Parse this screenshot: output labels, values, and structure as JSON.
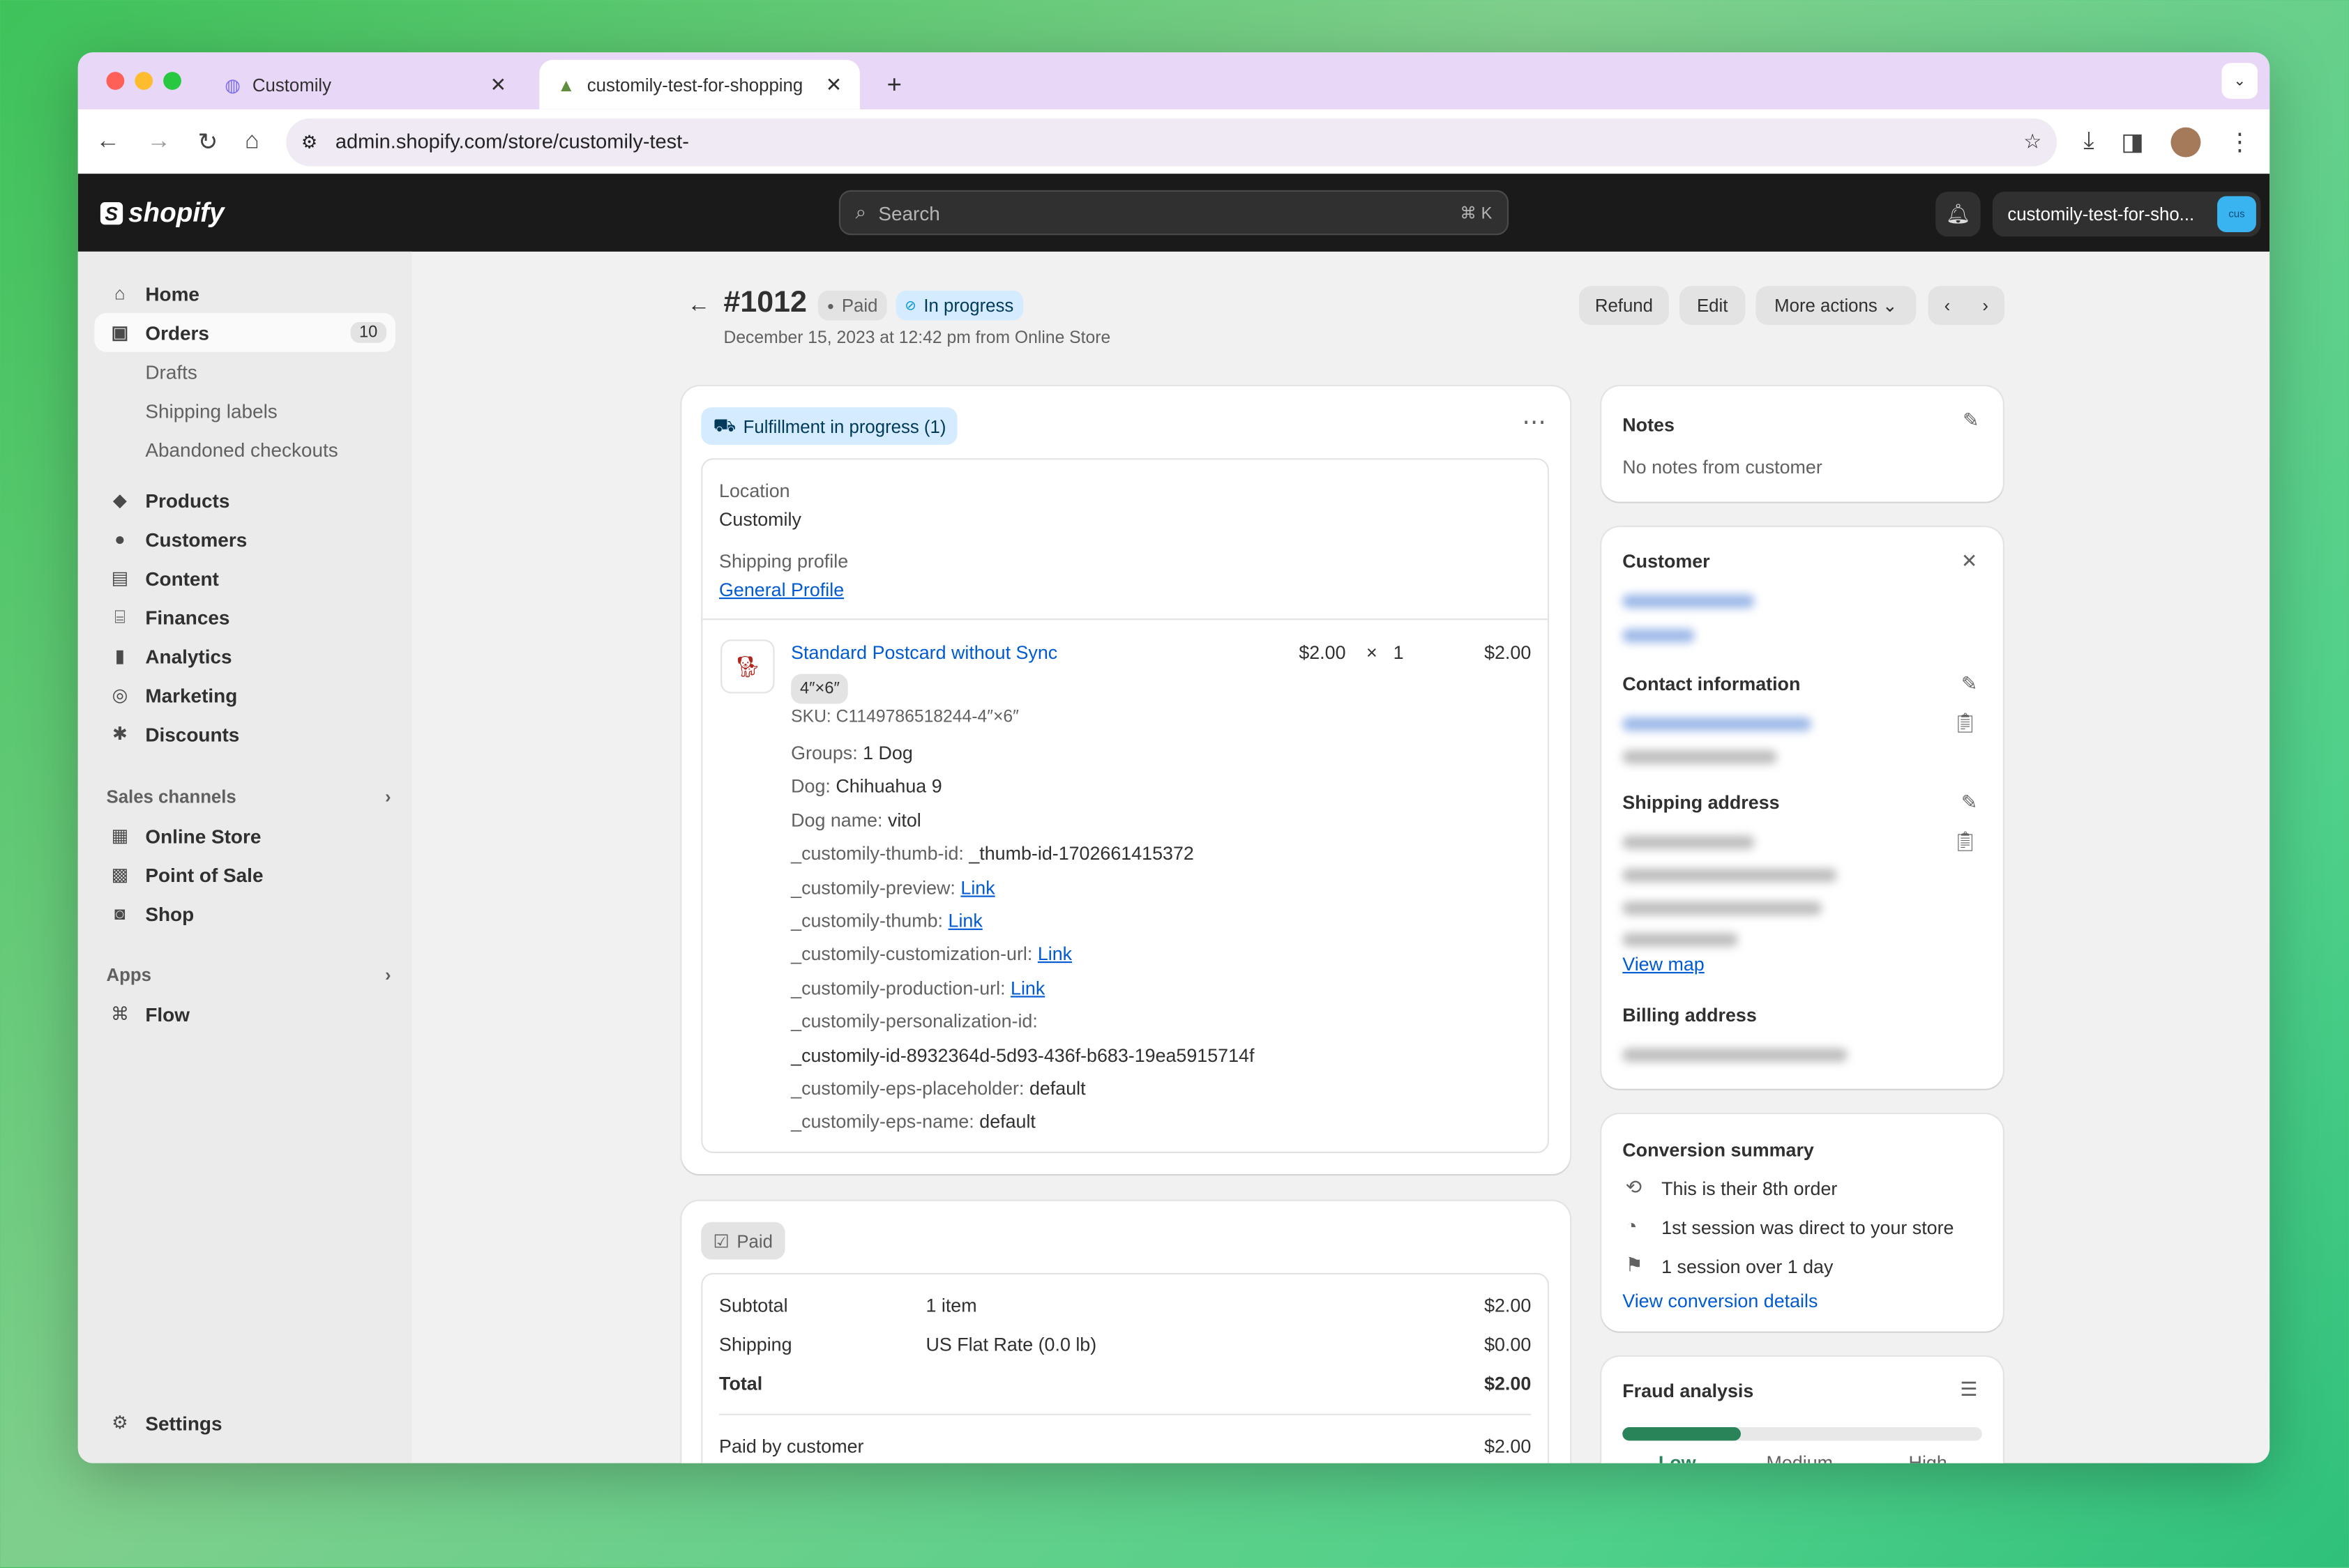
{
  "browser": {
    "tabs": [
      {
        "title": "Customily"
      },
      {
        "title": "customily-test-for-shopping"
      }
    ],
    "url": "admin.shopify.com/store/customily-test-",
    "new_tab": "+"
  },
  "header": {
    "logo": "shopify",
    "search_placeholder": "Search",
    "search_shortcut": "⌘ K",
    "store_name": "customily-test-for-sho...",
    "store_avatar": "cus"
  },
  "sidebar": {
    "items": [
      {
        "label": "Home"
      },
      {
        "label": "Orders",
        "badge": "10"
      },
      {
        "label": "Drafts"
      },
      {
        "label": "Shipping labels"
      },
      {
        "label": "Abandoned checkouts"
      },
      {
        "label": "Products"
      },
      {
        "label": "Customers"
      },
      {
        "label": "Content"
      },
      {
        "label": "Finances"
      },
      {
        "label": "Analytics"
      },
      {
        "label": "Marketing"
      },
      {
        "label": "Discounts"
      }
    ],
    "sales_channels_title": "Sales channels",
    "channels": [
      {
        "label": "Online Store"
      },
      {
        "label": "Point of Sale"
      },
      {
        "label": "Shop"
      }
    ],
    "apps_title": "Apps",
    "apps": [
      {
        "label": "Flow"
      }
    ],
    "settings": "Settings"
  },
  "order": {
    "number": "#1012",
    "payment_status": "Paid",
    "fulfillment_status": "In progress",
    "date": "December 15, 2023 at 12:42 pm from Online Store",
    "actions": {
      "refund": "Refund",
      "edit": "Edit",
      "more": "More actions"
    }
  },
  "fulfillment": {
    "badge": "Fulfillment in progress (1)",
    "location_label": "Location",
    "location": "Customily",
    "profile_label": "Shipping profile",
    "profile": "General Profile",
    "item": {
      "title": "Standard Postcard without Sync",
      "variant": "4″×6″",
      "sku": "SKU: C1149786518244-4″×6″",
      "price": "$2.00",
      "times": "×",
      "qty": "1",
      "total": "$2.00",
      "properties": [
        {
          "k": "Groups:",
          "v": "1 Dog"
        },
        {
          "k": "Dog:",
          "v": "Chihuahua 9"
        },
        {
          "k": "Dog name:",
          "v": "vitol"
        },
        {
          "k": "_customily-thumb-id:",
          "v": "_thumb-id-1702661415372"
        },
        {
          "k": "_customily-preview:",
          "v": "Link",
          "link": true
        },
        {
          "k": "_customily-thumb:",
          "v": "Link",
          "link": true
        },
        {
          "k": "_customily-customization-url:",
          "v": "Link",
          "link": true
        },
        {
          "k": "_customily-production-url:",
          "v": "Link",
          "link": true
        },
        {
          "k": "_customily-personalization-id:",
          "v": ""
        },
        {
          "k": "",
          "v": "_customily-id-8932364d-5d93-436f-b683-19ea5915714f"
        },
        {
          "k": "_customily-eps-placeholder:",
          "v": "default"
        },
        {
          "k": "_customily-eps-name:",
          "v": "default"
        }
      ]
    }
  },
  "payment": {
    "badge": "Paid",
    "rows": [
      {
        "label": "Subtotal",
        "desc": "1 item",
        "amount": "$2.00"
      },
      {
        "label": "Shipping",
        "desc": "US Flat Rate (0.0 lb)",
        "amount": "$0.00"
      },
      {
        "label": "Total",
        "desc": "",
        "amount": "$2.00"
      }
    ],
    "paid_by_label": "Paid by customer",
    "paid_by": "$2.00"
  },
  "notes": {
    "title": "Notes",
    "text": "No notes from customer"
  },
  "customer": {
    "title": "Customer",
    "contact_title": "Contact information",
    "shipping_title": "Shipping address",
    "view_map": "View map",
    "billing_title": "Billing address"
  },
  "conversion": {
    "title": "Conversion summary",
    "items": [
      "This is their 8th order",
      "1st session was direct to your store",
      "1 session over 1 day"
    ],
    "link": "View conversion details"
  },
  "fraud": {
    "title": "Fraud analysis",
    "level_fraction": 0.33,
    "labels": [
      "Low",
      "Medium",
      "High"
    ],
    "color": "#29845a"
  }
}
